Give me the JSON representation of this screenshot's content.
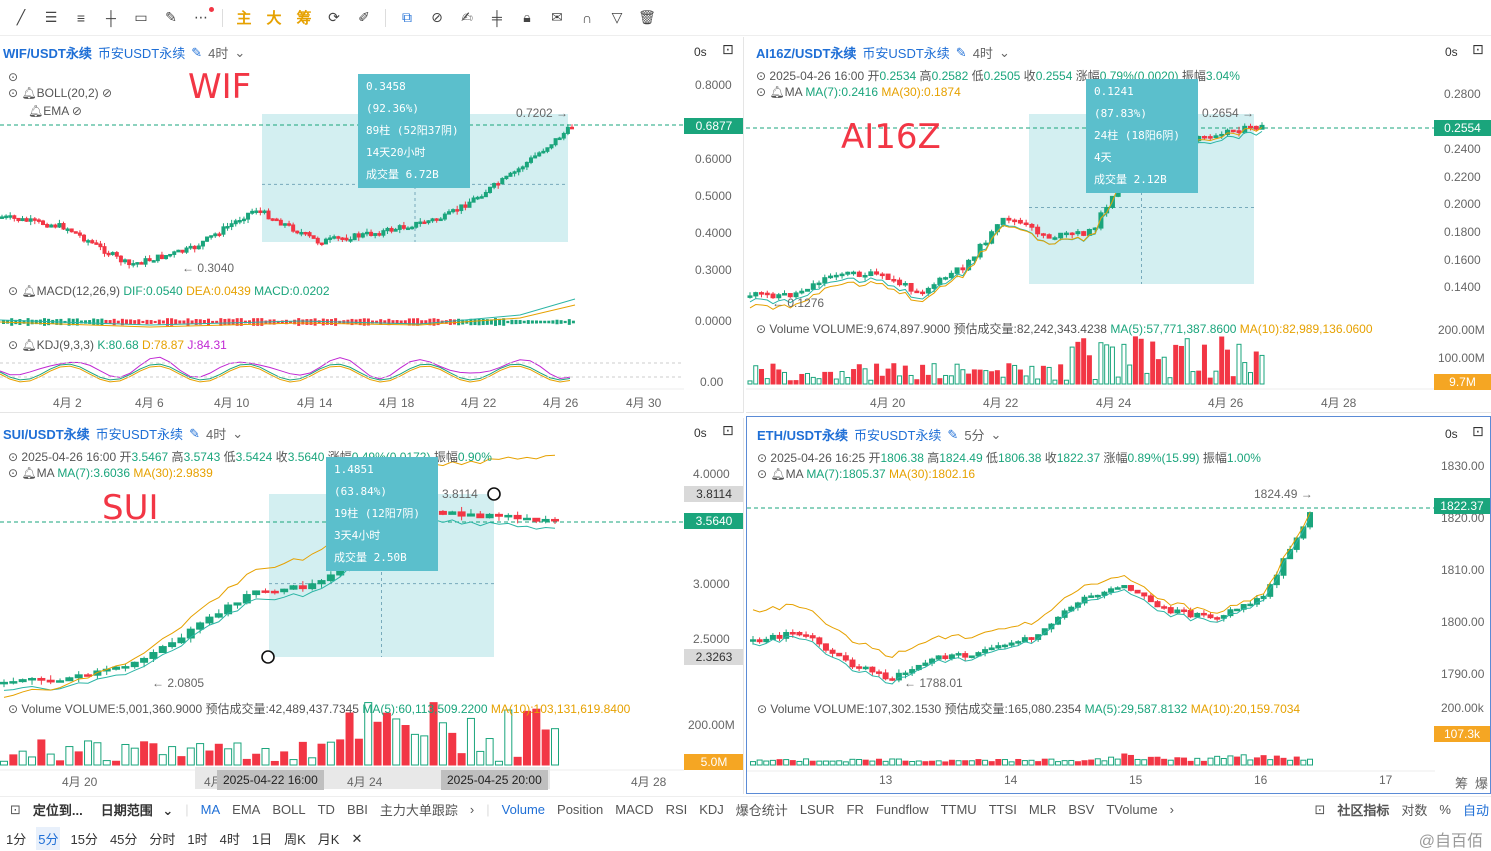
{
  "toolbar": {
    "icons": [
      "line-tool-icon",
      "parallel-lines-icon",
      "hline-icon",
      "cross-line-icon",
      "rectangle-icon",
      "brush-icon",
      "more-icon"
    ],
    "cn_buttons": [
      "主",
      "大",
      "筹"
    ],
    "icons2": [
      "refresh-icon",
      "pen-icon"
    ],
    "icons3": [
      "copy-icon",
      "ruler-icon",
      "measure-icon",
      "candles-icon",
      "lock-icon",
      "note-icon",
      "magnet-icon",
      "filter-icon",
      "trash-icon"
    ]
  },
  "panels": [
    {
      "symbol": "WIF/USDT永续",
      "exchange": "币安USDT永续",
      "timeframe": "4时",
      "os": "0s",
      "big_label": "WIF",
      "indicators": [
        "BOLL(20,2)",
        "EMA"
      ],
      "price_axis": [
        "0.8000",
        "0.6000",
        "0.5000",
        "0.4000",
        "0.3000",
        "0.0000",
        "0.00"
      ],
      "current_price": "0.6877",
      "high_label": "0.7202",
      "low_label": "0.3040",
      "info": [
        "0.3458 (92.36%)",
        "89柱 (52阳37阴)",
        "14天20小时",
        "成交量 6.72B"
      ],
      "macd": {
        "name": "MACD(12,26,9)",
        "dif": "DIF:0.0540",
        "dea": "DEA:0.0439",
        "macd": "MACD:0.0202"
      },
      "kdj": {
        "name": "KDJ(9,3,3)",
        "k": "K:80.68",
        "d": "D:78.87",
        "j": "J:84.31"
      },
      "dates": [
        "4月 2",
        "4月 6",
        "4月 10",
        "4月 14",
        "4月 18",
        "4月 22",
        "4月 26",
        "4月 30"
      ]
    },
    {
      "symbol": "AI16Z/USDT永续",
      "exchange": "币安USDT永续",
      "timeframe": "4时",
      "os": "0s",
      "big_label": "AI16Z",
      "ohlc": {
        "time": "2025-04-26 16:00",
        "open_l": "开",
        "open": "0.2534",
        "high_l": "高",
        "high": "0.2582",
        "low_l": "低",
        "low": "0.2505",
        "close_l": "收",
        "close": "0.2554",
        "chg_l": "涨幅",
        "chg": "0.79%(0.0020)",
        "amp_l": "振幅",
        "amp": "3.04%"
      },
      "ma": {
        "name": "MA",
        "ma7": "MA(7):0.2416",
        "ma30": "MA(30):0.1874"
      },
      "price_axis": [
        "0.2800",
        "0.2400",
        "0.2200",
        "0.2000",
        "0.1800",
        "0.1600",
        "0.1400"
      ],
      "current_price": "0.2554",
      "high_label": "0.2654",
      "low_label": "0.1276",
      "info": [
        "0.1241 (87.83%)",
        "24柱 (18阳6阴)",
        "4天",
        "成交量 2.12B"
      ],
      "volume": {
        "name": "Volume",
        "vol": "VOLUME:9,674,897.9000",
        "est": "预估成交量:82,242,343.4238",
        "ma5": "MA(5):57,771,387.8600",
        "ma10": "MA(10):82,989,136.0600"
      },
      "vol_axis": [
        "200.00M",
        "100.00M"
      ],
      "vol_tag": "9.7M",
      "dates": [
        "4月 20",
        "4月 22",
        "4月 24",
        "4月 26",
        "4月 28"
      ]
    },
    {
      "symbol": "SUI/USDT永续",
      "exchange": "币安USDT永续",
      "timeframe": "4时",
      "os": "0s",
      "big_label": "SUI",
      "ohlc": {
        "time": "2025-04-26 16:00",
        "open_l": "开",
        "open": "3.5467",
        "high_l": "高",
        "high": "3.5743",
        "low_l": "低",
        "low": "3.5424",
        "close_l": "收",
        "close": "3.5640",
        "chg_l": "涨幅",
        "chg": "0.49%(0.0172)",
        "amp_l": "振幅",
        "amp": "0.90%"
      },
      "ma": {
        "name": "MA",
        "ma7": "MA(7):3.6036",
        "ma30": "MA(30):2.9839"
      },
      "price_axis": [
        "4.0000",
        "3.0000",
        "2.5000"
      ],
      "price_tag_high": "3.8114",
      "current_price": "3.5640",
      "price_tag_low": "2.3263",
      "high_label": "3.8114",
      "low_label": "2.0805",
      "info": [
        "1.4851 (63.84%)",
        "19柱 (12阳7阴)",
        "3天4小时",
        "成交量 2.50B"
      ],
      "volume": {
        "name": "Volume",
        "vol": "VOLUME:5,001,360.9000",
        "est": "预估成交量:42,489,437.7345",
        "ma5": "MA(5):60,113,509.2200",
        "ma10": "MA(10):103,131,619.8400"
      },
      "vol_axis": [
        "200.00M"
      ],
      "vol_tag": "5.0M",
      "dates": [
        "4月 20",
        "4月",
        "4月 24",
        "4月 28"
      ],
      "date_tags": [
        "2025-04-22 16:00",
        "2025-04-25 20:00"
      ]
    },
    {
      "symbol": "ETH/USDT永续",
      "exchange": "币安USDT永续",
      "timeframe": "5分",
      "os": "0s",
      "ohlc": {
        "time": "2025-04-26 16:25",
        "open_l": "开",
        "open": "1806.38",
        "high_l": "高",
        "high": "1824.49",
        "low_l": "低",
        "low": "1806.38",
        "close_l": "收",
        "close": "1822.37",
        "chg_l": "涨幅",
        "chg": "0.89%(15.99)",
        "amp_l": "振幅",
        "amp": "1.00%"
      },
      "ma": {
        "name": "MA",
        "ma7": "MA(7):1805.37",
        "ma30": "MA(30):1802.16"
      },
      "price_axis": [
        "1830.00",
        "1820.00",
        "1810.00",
        "1800.00",
        "1790.00"
      ],
      "current_price": "1822.37",
      "high_label": "1824.49",
      "low_label": "1788.01",
      "volume": {
        "name": "Volume",
        "vol": "VOLUME:107,302.1530",
        "est": "预估成交量:165,080.2354",
        "ma5": "MA(5):29,587.8132",
        "ma10": "MA(10):20,159.7034"
      },
      "vol_axis": [
        "200.00k"
      ],
      "vol_tag": "107.3k",
      "dates": [
        "13",
        "14",
        "15",
        "16",
        "17"
      ]
    }
  ],
  "bottom_bar": {
    "locate": "定位到...",
    "date_range": "日期范围",
    "indicators": [
      "MA",
      "EMA",
      "BOLL",
      "TD",
      "BBI",
      "主力大单跟踪"
    ],
    "sub_indicators": [
      "Volume",
      "Position",
      "MACD",
      "RSI",
      "KDJ",
      "爆仓统计",
      "LSUR",
      "FR",
      "Fundflow",
      "TTMU",
      "TTSI",
      "MLR",
      "BSV",
      "TVolume"
    ],
    "right": [
      "社区指标",
      "对数",
      "%",
      "自动"
    ],
    "watermark": "@自百佰"
  },
  "intervals": [
    "1分",
    "5分",
    "15分",
    "45分",
    "分时",
    "1时",
    "4时",
    "1日",
    "周K",
    "月K"
  ],
  "side_labels": [
    "筹",
    "爆"
  ]
}
